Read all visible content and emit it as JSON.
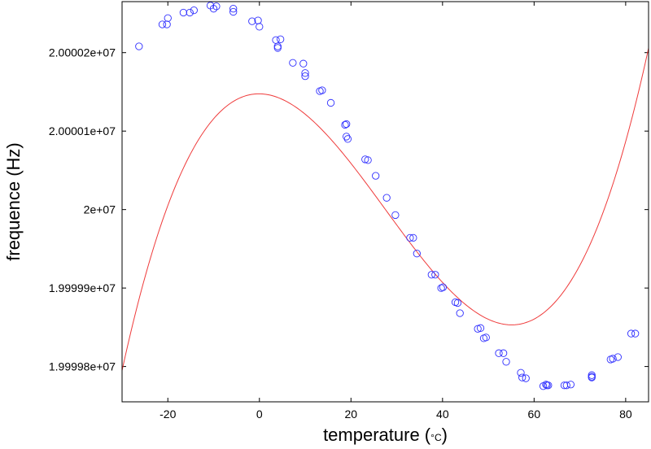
{
  "chart_data": {
    "type": "scatter",
    "xlabel": "temperature",
    "xlabel_unit": "°C",
    "ylabel": "frequence (Hz)",
    "xlim": [
      -30,
      85
    ],
    "ylim": [
      19999975.5,
      20000026.5
    ],
    "x_ticks": [
      -20,
      0,
      20,
      40,
      60,
      80
    ],
    "y_ticks": [
      {
        "value": 19999980,
        "label": "1.99998e+07"
      },
      {
        "value": 19999990,
        "label": "1.99999e+07"
      },
      {
        "value": 20000000,
        "label": "2e+07"
      },
      {
        "value": 20000010,
        "label": "2.00001e+07"
      },
      {
        "value": 20000020,
        "label": "2.00002e+07"
      }
    ],
    "grid": false,
    "points": [
      [
        -26.3,
        20000020.8
      ],
      [
        -21.2,
        20000023.6
      ],
      [
        -20.2,
        20000023.6
      ],
      [
        -20.0,
        20000024.4
      ],
      [
        -16.6,
        20000025.1
      ],
      [
        -15.2,
        20000025.1
      ],
      [
        -14.3,
        20000025.4
      ],
      [
        -10.7,
        20000026.0
      ],
      [
        -10.0,
        20000025.6
      ],
      [
        -9.4,
        20000025.9
      ],
      [
        -5.7,
        20000025.2
      ],
      [
        -5.7,
        20000025.6
      ],
      [
        -1.6,
        20000024.0
      ],
      [
        -0.3,
        20000024.1
      ],
      [
        0.0,
        20000023.3
      ],
      [
        3.6,
        20000021.6
      ],
      [
        4.0,
        20000020.8
      ],
      [
        4.0,
        20000020.6
      ],
      [
        4.6,
        20000021.7
      ],
      [
        7.3,
        20000018.7
      ],
      [
        9.6,
        20000018.6
      ],
      [
        10.0,
        20000017.4
      ],
      [
        10.0,
        20000017.0
      ],
      [
        13.2,
        20000015.1
      ],
      [
        13.7,
        20000015.2
      ],
      [
        15.6,
        20000013.6
      ],
      [
        18.7,
        20000010.8
      ],
      [
        19.0,
        20000010.9
      ],
      [
        19.0,
        20000009.3
      ],
      [
        19.3,
        20000009.0
      ],
      [
        23.1,
        20000006.4
      ],
      [
        23.7,
        20000006.3
      ],
      [
        25.4,
        20000004.3
      ],
      [
        27.8,
        20000001.5
      ],
      [
        29.7,
        19999999.3
      ],
      [
        32.9,
        19999996.4
      ],
      [
        33.6,
        19999996.4
      ],
      [
        34.4,
        19999994.4
      ],
      [
        37.6,
        19999991.7
      ],
      [
        38.4,
        19999991.7
      ],
      [
        39.7,
        19999990.0
      ],
      [
        40.1,
        19999990.1
      ],
      [
        42.8,
        19999988.2
      ],
      [
        43.3,
        19999988.1
      ],
      [
        43.8,
        19999986.8
      ],
      [
        47.7,
        19999984.8
      ],
      [
        48.3,
        19999984.9
      ],
      [
        49.0,
        19999983.6
      ],
      [
        49.5,
        19999983.7
      ],
      [
        52.3,
        19999981.7
      ],
      [
        53.3,
        19999981.7
      ],
      [
        53.9,
        19999980.6
      ],
      [
        57.1,
        19999979.2
      ],
      [
        57.4,
        19999978.6
      ],
      [
        58.2,
        19999978.5
      ],
      [
        62.0,
        19999977.5
      ],
      [
        62.6,
        19999977.7
      ],
      [
        62.8,
        19999977.6
      ],
      [
        63.1,
        19999977.6
      ],
      [
        66.6,
        19999977.6
      ],
      [
        67.1,
        19999977.6
      ],
      [
        68.0,
        19999977.7
      ],
      [
        72.6,
        19999978.7
      ],
      [
        72.6,
        19999978.6
      ],
      [
        72.6,
        19999978.9
      ],
      [
        76.7,
        19999980.9
      ],
      [
        77.2,
        19999981.0
      ],
      [
        78.3,
        19999981.2
      ],
      [
        81.2,
        19999984.2
      ],
      [
        82.1,
        19999984.2
      ]
    ],
    "fit_curve": {
      "type": "cubic",
      "center_t": 27.5,
      "a": 20000000.03,
      "b": -0.8,
      "c": 0.0,
      "d": 0.00035
    }
  }
}
